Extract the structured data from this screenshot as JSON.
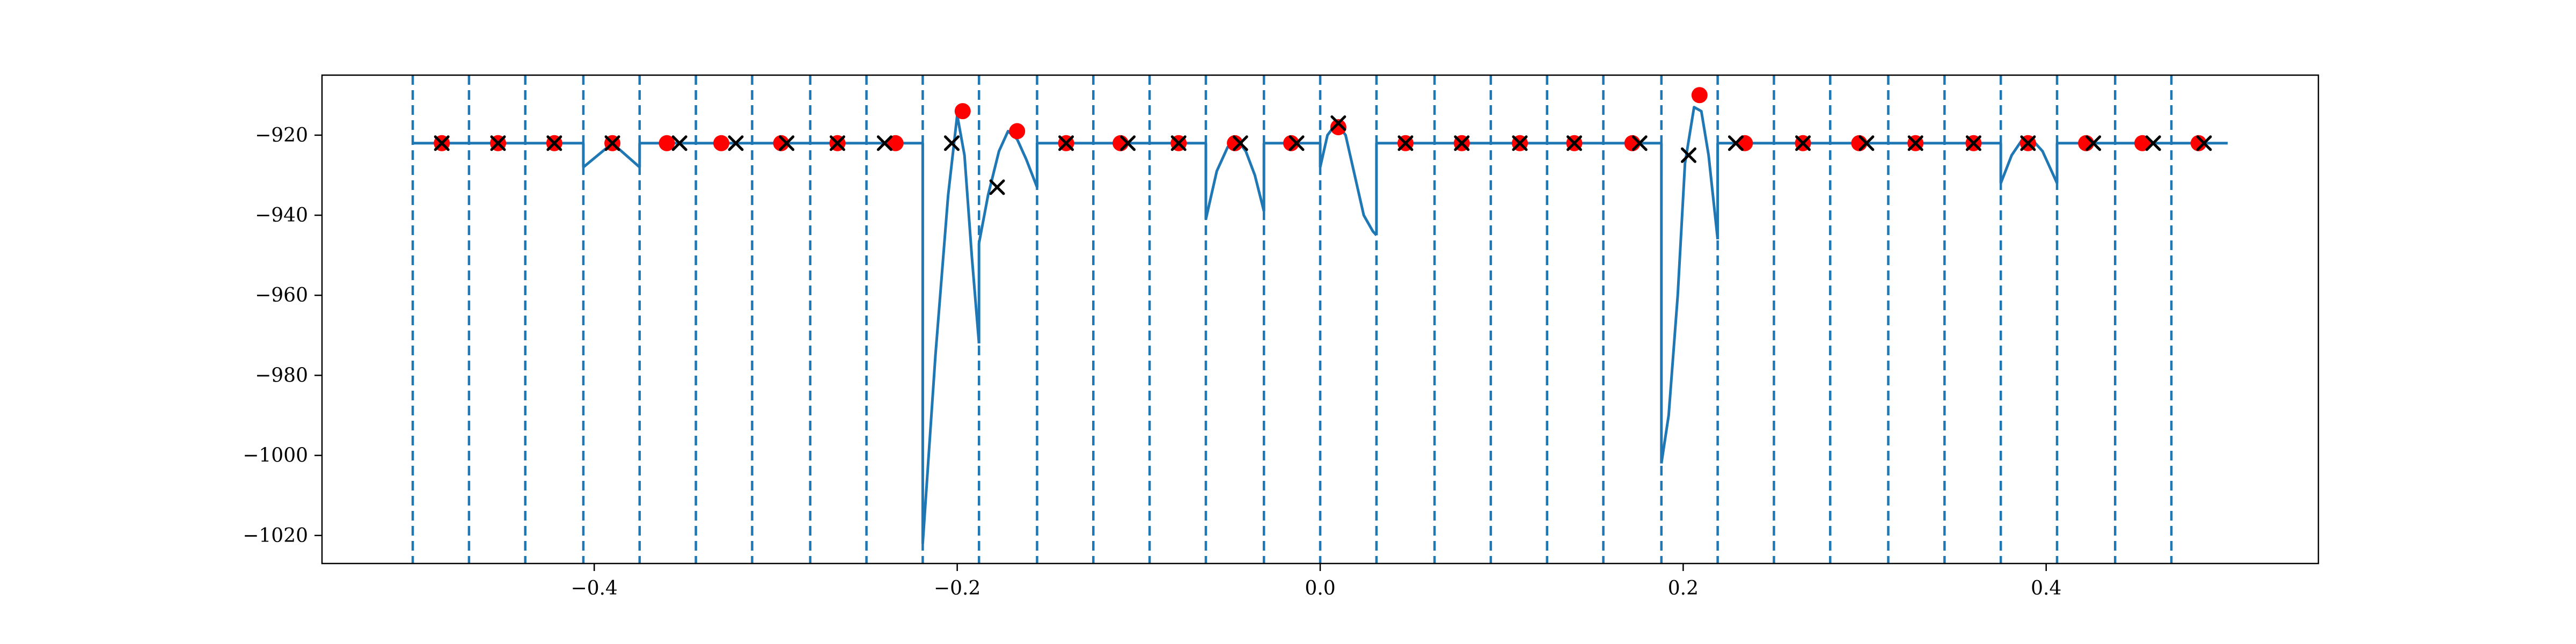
{
  "chart_data": {
    "type": "line",
    "title": "",
    "xlabel": "",
    "ylabel": "",
    "xlim": [
      -0.55,
      0.55
    ],
    "ylim": [
      -1027,
      -905
    ],
    "grid": false,
    "x_ticks": [
      {
        "value": -0.4,
        "label": "−0.4"
      },
      {
        "value": -0.2,
        "label": "−0.2"
      },
      {
        "value": 0.0,
        "label": "0.0"
      },
      {
        "value": 0.2,
        "label": "0.2"
      },
      {
        "value": 0.4,
        "label": "0.4"
      }
    ],
    "y_ticks": [
      {
        "value": -920,
        "label": "−920"
      },
      {
        "value": -940,
        "label": "−940"
      },
      {
        "value": -960,
        "label": "−960"
      },
      {
        "value": -980,
        "label": "−980"
      },
      {
        "value": -1000,
        "label": "−1000"
      },
      {
        "value": -1020,
        "label": "−1020"
      }
    ],
    "vlines": [
      -0.5,
      -0.469,
      -0.438,
      -0.406,
      -0.375,
      -0.344,
      -0.313,
      -0.281,
      -0.25,
      -0.219,
      -0.188,
      -0.156,
      -0.125,
      -0.094,
      -0.063,
      -0.031,
      0.0,
      0.031,
      0.063,
      0.094,
      0.125,
      0.156,
      0.188,
      0.219,
      0.25,
      0.281,
      0.313,
      0.344,
      0.375,
      0.406,
      0.438,
      0.469
    ],
    "colors": {
      "line": "#1f77b4",
      "vline": "#1f77b4",
      "red_points": "#ff0000",
      "black_markers": "#000000"
    },
    "line_series": [
      {
        "x": [
          -0.5,
          -0.406
        ],
        "y": [
          -922,
          -922
        ]
      },
      {
        "x": [
          -0.406,
          -0.39,
          -0.375
        ],
        "y": [
          -928,
          -922,
          -928
        ]
      },
      {
        "x": [
          -0.375,
          -0.219
        ],
        "y": [
          -922,
          -922
        ]
      },
      {
        "x": [
          -0.219,
          -0.212,
          -0.205,
          -0.2,
          -0.196,
          -0.192,
          -0.188
        ],
        "y": [
          -1022,
          -975,
          -935,
          -915,
          -925,
          -950,
          -972
        ]
      },
      {
        "x": [
          -0.188,
          -0.183,
          -0.177,
          -0.172,
          -0.167,
          -0.162,
          -0.156
        ],
        "y": [
          -947,
          -935,
          -924,
          -919,
          -921,
          -926,
          -933
        ]
      },
      {
        "x": [
          -0.156,
          -0.063
        ],
        "y": [
          -922,
          -922
        ]
      },
      {
        "x": [
          -0.063,
          -0.057,
          -0.051,
          -0.046,
          -0.041,
          -0.036,
          -0.031
        ],
        "y": [
          -941,
          -929,
          -923,
          -921,
          -924,
          -930,
          -939
        ]
      },
      {
        "x": [
          -0.031,
          0.0
        ],
        "y": [
          -922,
          -922
        ]
      },
      {
        "x": [
          0.0,
          0.004,
          0.009,
          0.014,
          0.019,
          0.024,
          0.029,
          0.031
        ],
        "y": [
          -928,
          -920,
          -917,
          -920,
          -930,
          -940,
          -944,
          -945
        ]
      },
      {
        "x": [
          0.031,
          0.188
        ],
        "y": [
          -922,
          -922
        ]
      },
      {
        "x": [
          0.188,
          0.192,
          0.197,
          0.201,
          0.206,
          0.21,
          0.214,
          0.219
        ],
        "y": [
          -1002,
          -990,
          -960,
          -927,
          -913,
          -914,
          -925,
          -946
        ]
      },
      {
        "x": [
          0.219,
          0.375
        ],
        "y": [
          -922,
          -922
        ]
      },
      {
        "x": [
          0.375,
          0.381,
          0.387,
          0.392,
          0.398,
          0.403,
          0.406
        ],
        "y": [
          -932,
          -925,
          -921,
          -921,
          -924,
          -929,
          -932
        ]
      },
      {
        "x": [
          0.406,
          0.5
        ],
        "y": [
          -922,
          -922
        ]
      }
    ],
    "red_points": {
      "x": [
        -0.484,
        -0.453,
        -0.422,
        -0.39,
        -0.36,
        -0.33,
        -0.297,
        -0.266,
        -0.234,
        -0.197,
        -0.167,
        -0.14,
        -0.11,
        -0.078,
        -0.047,
        -0.016,
        0.01,
        0.047,
        0.078,
        0.11,
        0.14,
        0.172,
        0.209,
        0.234,
        0.266,
        0.297,
        0.328,
        0.36,
        0.39,
        0.422,
        0.453,
        0.484
      ],
      "y": [
        -922,
        -922,
        -922,
        -922,
        -922,
        -922,
        -922,
        -922,
        -922,
        -914,
        -919,
        -922,
        -922,
        -922,
        -922,
        -922,
        -918,
        -922,
        -922,
        -922,
        -922,
        -922,
        -910,
        -922,
        -922,
        -922,
        -922,
        -922,
        -922,
        -922,
        -922,
        -922
      ]
    },
    "black_markers": {
      "x": [
        -0.484,
        -0.453,
        -0.422,
        -0.39,
        -0.353,
        -0.322,
        -0.294,
        -0.266,
        -0.24,
        -0.203,
        -0.178,
        -0.14,
        -0.106,
        -0.078,
        -0.044,
        -0.013,
        0.01,
        0.047,
        0.078,
        0.11,
        0.14,
        0.176,
        0.203,
        0.229,
        0.266,
        0.301,
        0.328,
        0.36,
        0.39,
        0.426,
        0.459,
        0.487
      ],
      "y": [
        -922,
        -922,
        -922,
        -922,
        -922,
        -922,
        -922,
        -922,
        -922,
        -922,
        -933,
        -922,
        -922,
        -922,
        -922,
        -922,
        -917,
        -922,
        -922,
        -922,
        -922,
        -922,
        -925,
        -922,
        -922,
        -922,
        -922,
        -922,
        -922,
        -922,
        -922,
        -922
      ]
    }
  }
}
